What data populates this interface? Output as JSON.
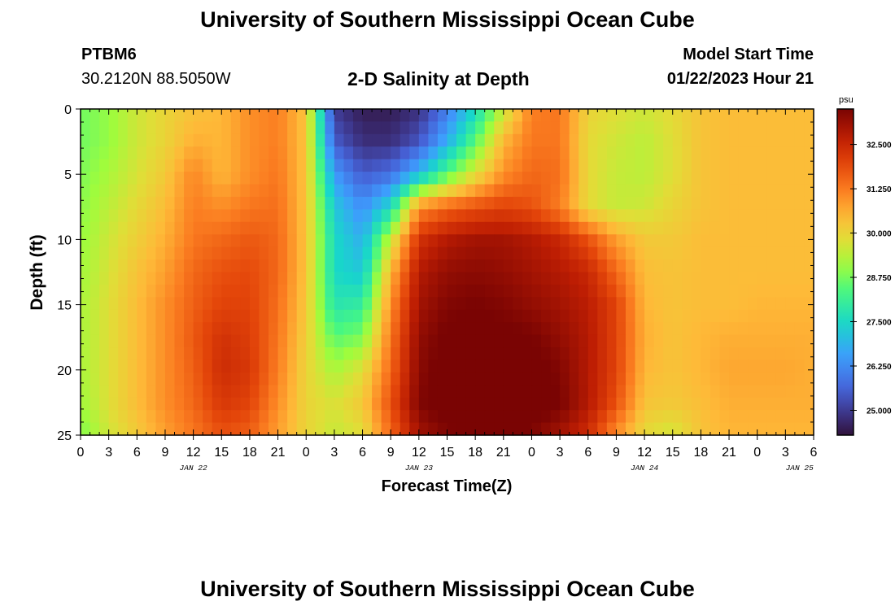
{
  "page": {
    "title": "University of Southern Mississippi Ocean Cube",
    "footer_title": "University of Southern Mississippi Ocean Cube",
    "station_id": "PTBM6",
    "coordinates": "30.2120N  88.5050W",
    "plot_heading": "2-D Salinity at Depth",
    "model_start_label": "Model Start Time",
    "model_start_value": "01/22/2023 Hour 21"
  },
  "chart_data": {
    "type": "heatmap",
    "title": "2-D Salinity at Depth",
    "xlabel": "Forecast Time(Z)",
    "ylabel": "Depth (ft)",
    "x_range_hours": [
      0,
      78
    ],
    "y_range": [
      0,
      25
    ],
    "y_ticks": [
      "0",
      "5",
      "10",
      "15",
      "20",
      "25"
    ],
    "x_ticks": [
      "0",
      "3",
      "6",
      "9",
      "12",
      "15",
      "18",
      "21",
      "0",
      "3",
      "6",
      "9",
      "12",
      "15",
      "18",
      "21",
      "0",
      "3",
      "6",
      "9",
      "12",
      "15",
      "18",
      "21",
      "0",
      "3",
      "6"
    ],
    "date_labels": [
      "JAN 22",
      "JAN 23",
      "JAN 24",
      "JAN 25"
    ],
    "colorbar": {
      "unit": "psu",
      "range": [
        24.3,
        33.5
      ],
      "ticks": [
        "25.000",
        "26.250",
        "27.500",
        "28.750",
        "30.000",
        "31.250",
        "32.500"
      ]
    },
    "salinity_field": {
      "x_hours": [
        0,
        3,
        6,
        9,
        12,
        15,
        18,
        21,
        24,
        27,
        30,
        33,
        36,
        39,
        42,
        45,
        48,
        51,
        54,
        57,
        60,
        63,
        66,
        69,
        72,
        75,
        78
      ],
      "depths_ft": [
        0,
        2.5,
        5,
        7.5,
        10,
        12.5,
        15,
        17.5,
        20,
        22.5,
        25
      ],
      "values": [
        [
          28.7,
          29.0,
          29.6,
          30.0,
          30.3,
          30.5,
          31.0,
          31.2,
          30.3,
          25.0,
          24.5,
          24.5,
          24.8,
          26.0,
          27.5,
          29.5,
          31.2,
          31.3,
          30.0,
          29.8,
          29.6,
          29.9,
          30.3,
          30.4,
          30.4,
          30.4,
          30.4
        ],
        [
          28.7,
          29.0,
          29.6,
          30.0,
          30.6,
          30.5,
          31.0,
          31.2,
          30.3,
          25.5,
          24.8,
          24.8,
          25.4,
          26.8,
          28.5,
          30.5,
          31.3,
          31.3,
          29.9,
          29.6,
          29.4,
          29.8,
          30.3,
          30.4,
          30.4,
          30.4,
          30.4
        ],
        [
          28.8,
          29.2,
          29.7,
          30.2,
          31.1,
          30.5,
          31.0,
          31.3,
          30.3,
          26.5,
          25.5,
          25.8,
          27.0,
          28.5,
          29.8,
          31.0,
          31.5,
          31.4,
          29.9,
          29.5,
          29.4,
          29.8,
          30.3,
          30.4,
          30.4,
          30.4,
          30.4
        ],
        [
          28.9,
          29.4,
          29.9,
          30.4,
          31.2,
          31.0,
          31.3,
          31.4,
          30.3,
          27.2,
          26.3,
          27.5,
          31.0,
          31.5,
          31.8,
          32.0,
          31.8,
          31.2,
          29.9,
          29.5,
          29.6,
          30.0,
          30.3,
          30.4,
          30.4,
          30.4,
          30.4
        ],
        [
          29.0,
          29.6,
          30.1,
          30.6,
          31.3,
          31.5,
          31.7,
          31.5,
          30.3,
          27.5,
          26.8,
          29.5,
          32.3,
          32.8,
          33.0,
          33.0,
          32.8,
          32.5,
          31.8,
          30.8,
          30.2,
          30.2,
          30.4,
          30.4,
          30.4,
          30.4,
          30.4
        ],
        [
          29.1,
          29.7,
          30.3,
          30.8,
          31.5,
          31.8,
          31.9,
          31.5,
          30.3,
          27.5,
          27.2,
          30.5,
          32.8,
          33.2,
          33.3,
          33.2,
          33.0,
          32.8,
          32.5,
          31.5,
          30.4,
          30.3,
          30.4,
          30.4,
          30.4,
          30.4,
          30.4
        ],
        [
          29.2,
          29.8,
          30.4,
          31.0,
          31.6,
          32.0,
          32.0,
          31.4,
          30.2,
          27.8,
          28.0,
          31.0,
          33.0,
          33.4,
          33.5,
          33.4,
          33.2,
          33.0,
          32.7,
          32.0,
          30.5,
          30.3,
          30.4,
          30.4,
          30.5,
          30.5,
          30.5
        ],
        [
          29.2,
          29.8,
          30.4,
          31.0,
          31.7,
          32.3,
          32.1,
          31.3,
          30.1,
          28.5,
          28.8,
          31.3,
          33.2,
          33.6,
          33.6,
          33.6,
          33.5,
          33.2,
          32.8,
          32.0,
          30.6,
          30.3,
          30.5,
          30.6,
          30.6,
          30.6,
          30.6
        ],
        [
          29.2,
          29.8,
          30.4,
          31.0,
          31.6,
          32.4,
          32.2,
          31.2,
          30.0,
          29.2,
          29.8,
          31.5,
          33.3,
          33.7,
          33.8,
          33.8,
          33.7,
          33.4,
          32.8,
          32.0,
          30.5,
          30.3,
          30.5,
          30.7,
          30.7,
          30.7,
          30.6
        ],
        [
          29.1,
          29.8,
          30.4,
          31.0,
          31.5,
          32.2,
          32.0,
          31.0,
          30.0,
          29.7,
          30.2,
          31.8,
          33.4,
          33.8,
          33.9,
          34.0,
          33.8,
          33.5,
          32.8,
          31.8,
          30.3,
          30.2,
          30.4,
          30.6,
          30.6,
          30.6,
          30.6
        ],
        [
          28.8,
          29.6,
          30.2,
          30.8,
          31.3,
          31.8,
          31.6,
          30.8,
          30.0,
          29.5,
          29.8,
          31.5,
          33.0,
          33.4,
          33.5,
          33.6,
          33.4,
          33.0,
          32.4,
          31.0,
          29.9,
          29.6,
          30.3,
          30.5,
          30.5,
          30.5,
          30.5
        ]
      ]
    }
  }
}
